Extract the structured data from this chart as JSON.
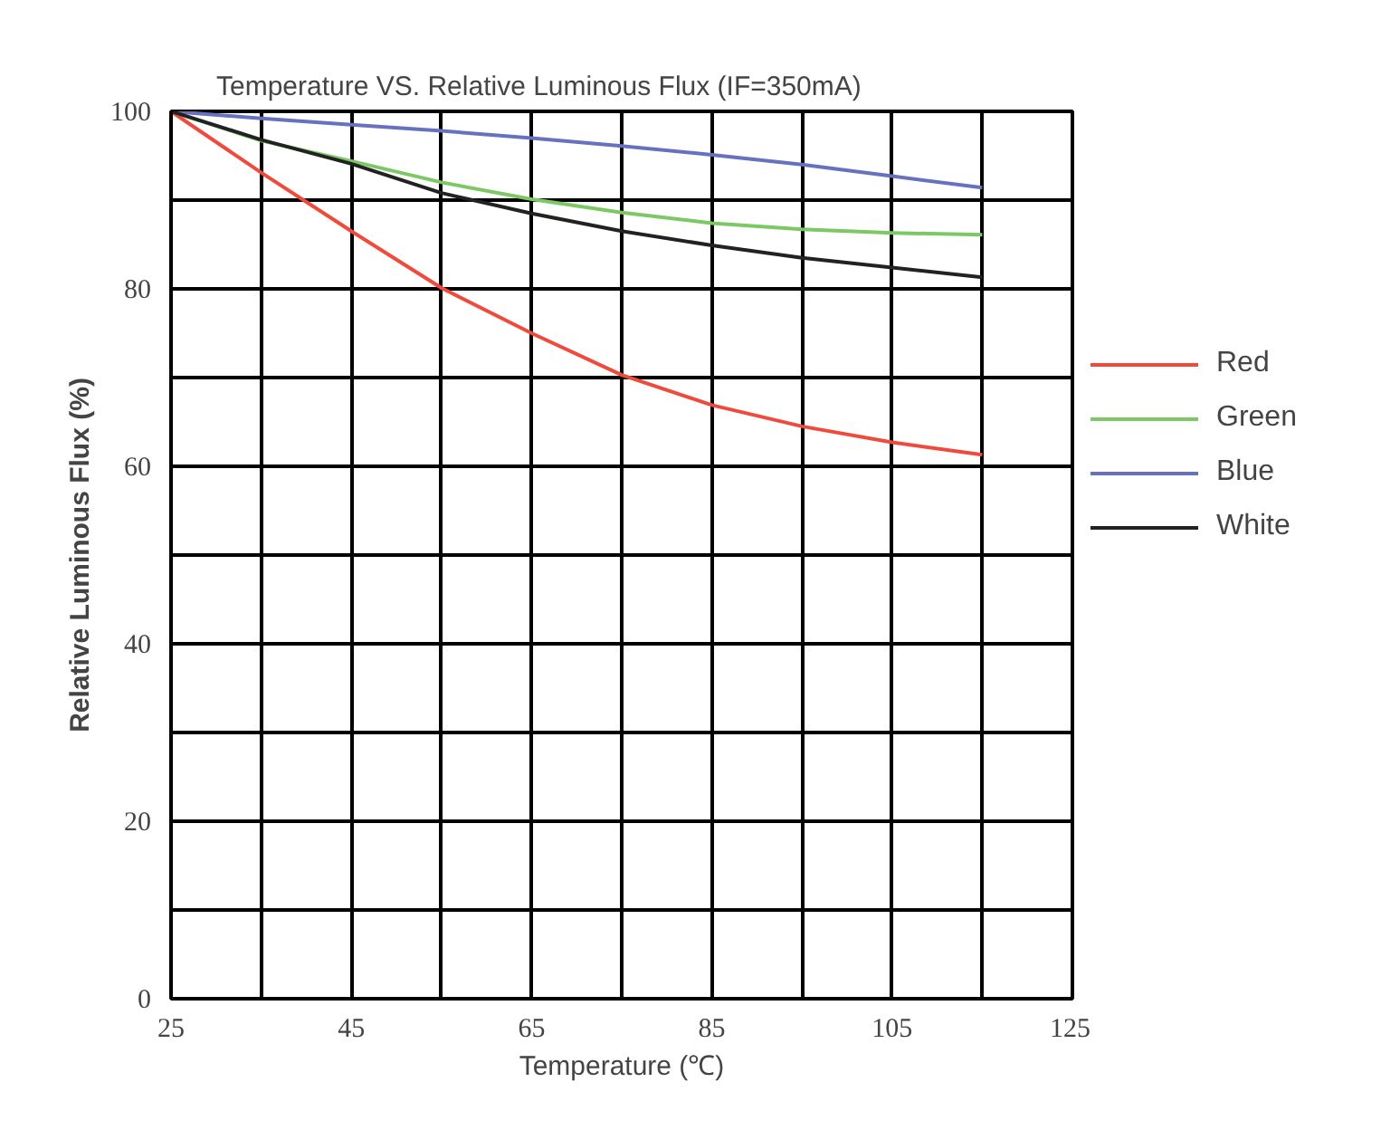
{
  "chart_data": {
    "type": "line",
    "title": "Temperature  VS.  Relative Luminous Flux (IF=350mA)",
    "xlabel": "Temperature (℃)",
    "ylabel": "Relative Luminous Flux (%)",
    "x": [
      25,
      35,
      45,
      55,
      65,
      75,
      85,
      95,
      105,
      115
    ],
    "series": [
      {
        "name": "Red",
        "color": "#f04a3c",
        "values": [
          100,
          93.1,
          86.5,
          80.1,
          75.0,
          70.3,
          66.9,
          64.5,
          62.7,
          61.3
        ]
      },
      {
        "name": "Green",
        "color": "#7cc864",
        "values": [
          100,
          96.7,
          94.4,
          92.0,
          90.1,
          88.6,
          87.4,
          86.7,
          86.3,
          86.1
        ]
      },
      {
        "name": "Blue",
        "color": "#6672c0",
        "values": [
          100,
          99.2,
          98.5,
          97.8,
          97.0,
          96.1,
          95.1,
          94.0,
          92.7,
          91.4
        ]
      },
      {
        "name": "White",
        "color": "#222222",
        "values": [
          100,
          96.8,
          94.1,
          90.8,
          88.5,
          86.5,
          84.9,
          83.5,
          82.4,
          81.3
        ]
      }
    ],
    "xlim": [
      25,
      125
    ],
    "ylim": [
      0,
      100
    ],
    "xticks": [
      25,
      {
        "value": 35,
        "label": null
      },
      45,
      {
        "value": 55,
        "label": null
      },
      65,
      {
        "value": 75,
        "label": null
      },
      85,
      {
        "value": 95,
        "label": null
      },
      105,
      {
        "value": 115,
        "label": null
      },
      125
    ],
    "yticks": [
      0,
      {
        "value": 10,
        "label": null
      },
      20,
      {
        "value": 30,
        "label": null
      },
      40,
      {
        "value": 50,
        "label": null
      },
      60,
      {
        "value": 70,
        "label": null
      },
      80,
      {
        "value": 90,
        "label": null
      },
      100
    ],
    "grid": true,
    "legend": "right",
    "marker": "none",
    "line_style": "solid"
  }
}
